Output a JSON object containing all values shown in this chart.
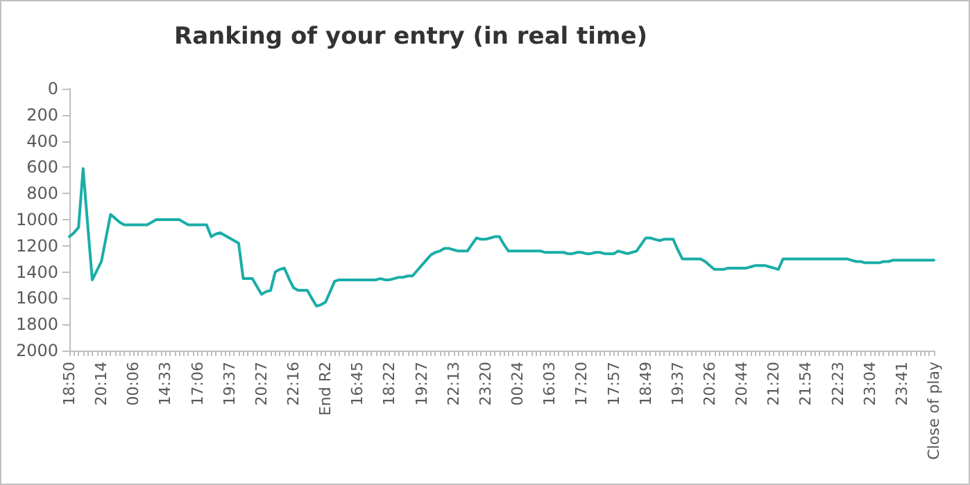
{
  "chart_data": {
    "type": "line",
    "title": "Ranking of your entry (in real time)",
    "categories": [
      "18:50",
      null,
      null,
      null,
      null,
      null,
      null,
      "20:14",
      null,
      null,
      null,
      null,
      null,
      null,
      "00:06",
      null,
      null,
      null,
      null,
      null,
      null,
      "14:33",
      null,
      null,
      null,
      null,
      null,
      null,
      "17:06",
      null,
      null,
      null,
      null,
      null,
      null,
      "19:37",
      null,
      null,
      null,
      null,
      null,
      null,
      "20:27",
      null,
      null,
      null,
      null,
      null,
      null,
      "22:16",
      null,
      null,
      null,
      null,
      null,
      null,
      "End R2",
      null,
      null,
      null,
      null,
      null,
      null,
      "16:45",
      null,
      null,
      null,
      null,
      null,
      null,
      "18:22",
      null,
      null,
      null,
      null,
      null,
      null,
      "19:27",
      null,
      null,
      null,
      null,
      null,
      null,
      "22:13",
      null,
      null,
      null,
      null,
      null,
      null,
      "23:20",
      null,
      null,
      null,
      null,
      null,
      null,
      "00:24",
      null,
      null,
      null,
      null,
      null,
      null,
      "16:03",
      null,
      null,
      null,
      null,
      null,
      null,
      "17:20",
      null,
      null,
      null,
      null,
      null,
      null,
      "17:57",
      null,
      null,
      null,
      null,
      null,
      null,
      "18:49",
      null,
      null,
      null,
      null,
      null,
      null,
      "19:37",
      null,
      null,
      null,
      null,
      null,
      null,
      "20:26",
      null,
      null,
      null,
      null,
      null,
      null,
      "20:44",
      null,
      null,
      null,
      null,
      null,
      null,
      "21:20",
      null,
      null,
      null,
      null,
      null,
      null,
      "21:54",
      null,
      null,
      null,
      null,
      null,
      null,
      "22:23",
      null,
      null,
      null,
      null,
      null,
      null,
      "23:04",
      null,
      null,
      null,
      null,
      null,
      null,
      "23:41",
      null,
      null,
      null,
      null,
      null,
      null,
      "Close of play"
    ],
    "series": [
      {
        "color": "#1aada8",
        "values": [
          1130,
          1100,
          1060,
          610,
          1040,
          1460,
          1390,
          1320,
          1140,
          960,
          990,
          1020,
          1040,
          1040,
          1040,
          1040,
          1040,
          1040,
          1020,
          1000,
          1000,
          1000,
          1000,
          1000,
          1000,
          1020,
          1040,
          1040,
          1040,
          1040,
          1040,
          1130,
          1110,
          1100,
          1120,
          1140,
          1160,
          1180,
          1450,
          1450,
          1450,
          1510,
          1570,
          1550,
          1540,
          1400,
          1380,
          1370,
          1450,
          1520,
          1540,
          1540,
          1540,
          1600,
          1660,
          1650,
          1630,
          1550,
          1470,
          1460,
          1460,
          1460,
          1460,
          1460,
          1460,
          1460,
          1460,
          1460,
          1450,
          1460,
          1460,
          1450,
          1440,
          1440,
          1430,
          1430,
          1390,
          1350,
          1310,
          1270,
          1250,
          1240,
          1220,
          1220,
          1230,
          1240,
          1240,
          1240,
          1190,
          1140,
          1150,
          1150,
          1140,
          1130,
          1130,
          1190,
          1240,
          1240,
          1240,
          1240,
          1240,
          1240,
          1240,
          1240,
          1250,
          1250,
          1250,
          1250,
          1250,
          1260,
          1260,
          1250,
          1250,
          1260,
          1260,
          1250,
          1250,
          1260,
          1260,
          1260,
          1240,
          1250,
          1260,
          1250,
          1240,
          1190,
          1140,
          1140,
          1150,
          1160,
          1150,
          1150,
          1150,
          1230,
          1300,
          1300,
          1300,
          1300,
          1300,
          1320,
          1350,
          1380,
          1380,
          1380,
          1370,
          1370,
          1370,
          1370,
          1370,
          1360,
          1350,
          1350,
          1350,
          1360,
          1370,
          1380,
          1300,
          1300,
          1300,
          1300,
          1300,
          1300,
          1300,
          1300,
          1300,
          1300,
          1300,
          1300,
          1300,
          1300,
          1300,
          1310,
          1320,
          1320,
          1330,
          1330,
          1330,
          1330,
          1320,
          1320,
          1310,
          1310,
          1310,
          1310,
          1310,
          1310,
          1310,
          1310,
          1310,
          1310
        ]
      }
    ],
    "ylim": [
      2000,
      0
    ],
    "yticks": [
      0,
      200,
      400,
      600,
      800,
      1000,
      1200,
      1400,
      1600,
      1800,
      2000
    ],
    "grid": false,
    "marker": "none",
    "line_style": "solid"
  }
}
